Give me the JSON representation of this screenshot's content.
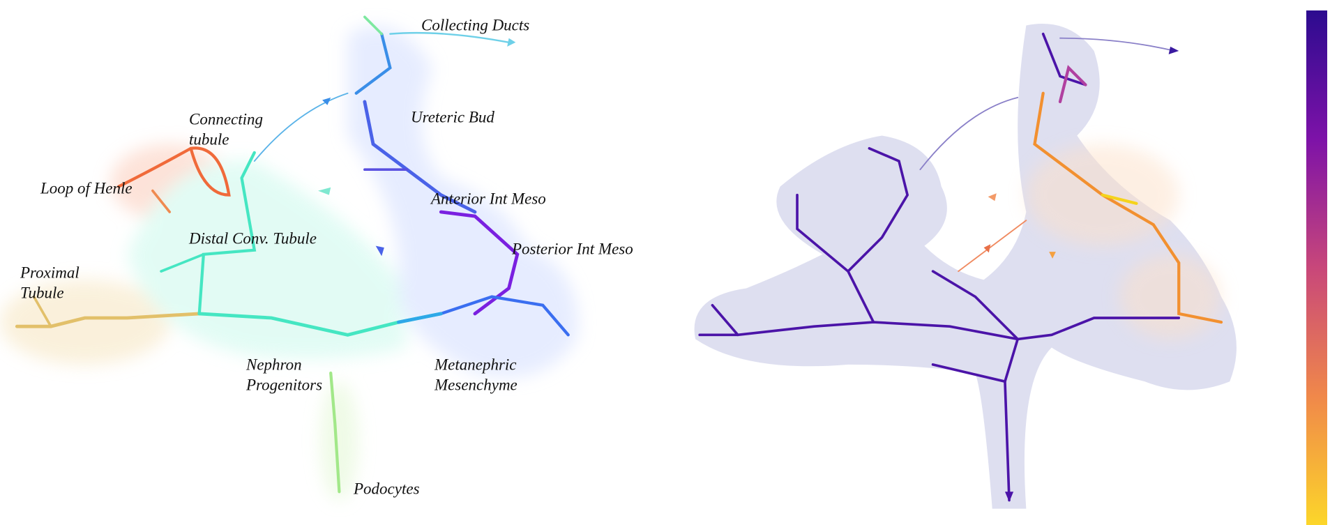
{
  "labels": [
    {
      "lines": [
        "Collecting Ducts"
      ]
    },
    {
      "lines": [
        "Ureteric Bud"
      ]
    },
    {
      "lines": [
        "Connecting",
        "tubule"
      ]
    },
    {
      "lines": [
        "Loop of Henle"
      ]
    },
    {
      "lines": [
        "Anterior Int Meso"
      ]
    },
    {
      "lines": [
        "Distal Conv. Tubule"
      ]
    },
    {
      "lines": [
        "Posterior Int Meso"
      ]
    },
    {
      "lines": [
        "Proximal",
        "Tubule"
      ]
    },
    {
      "lines": [
        "Nephron",
        "Progenitors"
      ]
    },
    {
      "lines": [
        "Metanephric",
        "Mesenchyme"
      ]
    },
    {
      "lines": [
        "Podocytes"
      ]
    }
  ]
}
